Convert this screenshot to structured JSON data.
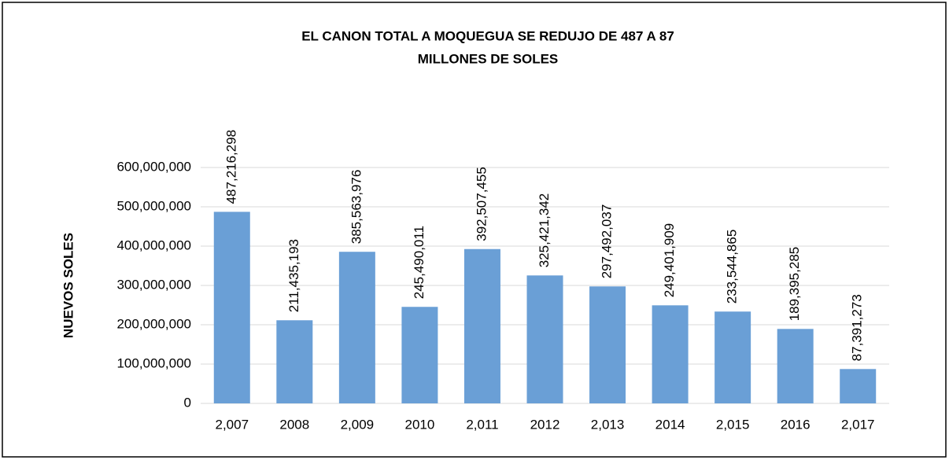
{
  "chart_data": {
    "type": "bar",
    "title": [
      "EL CANON TOTAL A MOQUEGUA SE REDUJO DE 487 A 87",
      "MILLONES DE SOLES"
    ],
    "y_label": "NUEVOS SOLES",
    "categories": [
      "2,007",
      "2008",
      "2,009",
      "2010",
      "2,011",
      "2012",
      "2,013",
      "2014",
      "2,015",
      "2016",
      "2,017"
    ],
    "values": [
      487216298,
      211435193,
      385563976,
      245490011,
      392507455,
      325421342,
      297492037,
      249401909,
      233544865,
      189395285,
      87391273
    ],
    "value_labels": [
      "487,216,298",
      "211,435,193",
      "385,563,976",
      "245,490,011",
      "392,507,455",
      "325,421,342",
      "297,492,037",
      "249,401,909",
      "233,544,865",
      "189,395,285",
      "87,391,273"
    ],
    "color": "#6a9fd6",
    "ylim": [
      0,
      600000000
    ],
    "yticks": [
      0,
      {
        "value": 100000000,
        "label": "100,000,000"
      },
      {
        "value": 200000000,
        "label": "200,000,000"
      },
      {
        "value": 300000000,
        "label": "300,000,000"
      },
      {
        "value": 400000000,
        "label": "400,000,000"
      },
      {
        "value": 500000000,
        "label": "500,000,000"
      },
      {
        "value": 600000000,
        "label": "600,000,000"
      }
    ],
    "grid": true
  }
}
